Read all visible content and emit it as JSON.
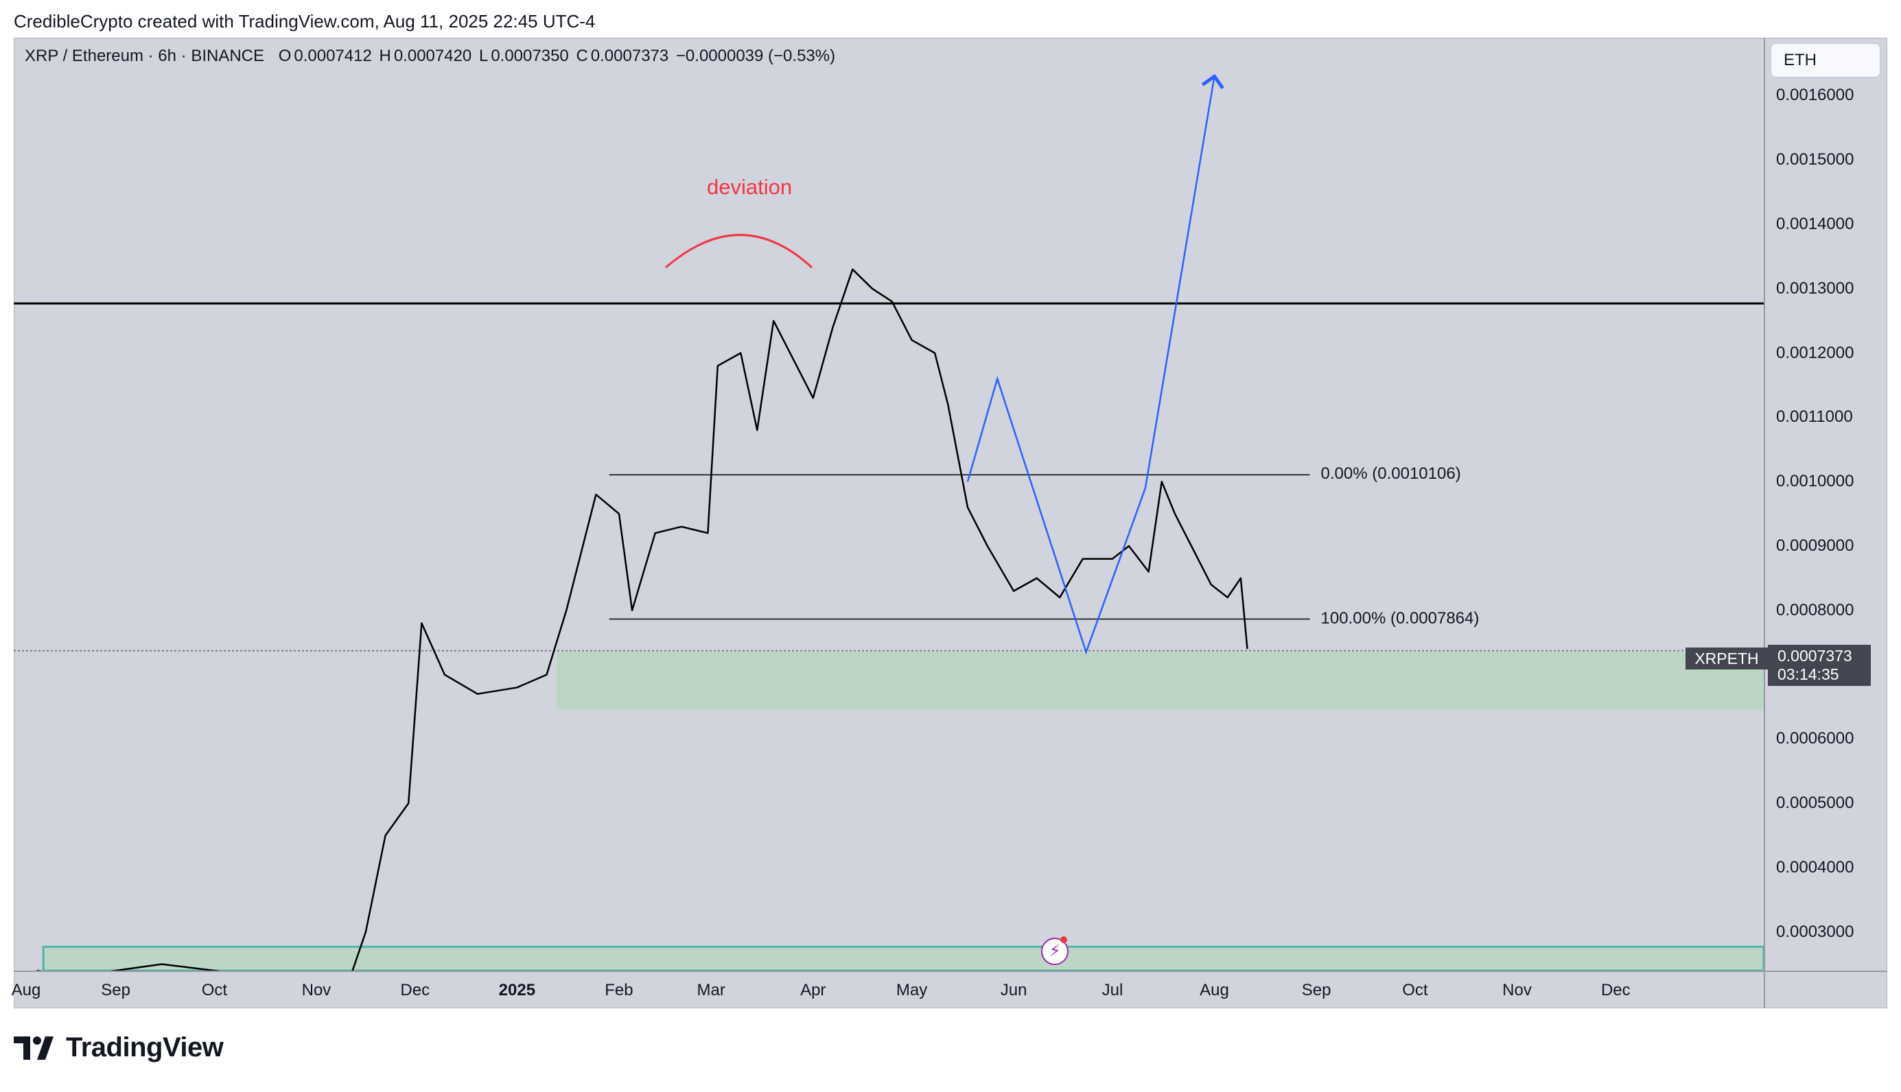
{
  "header": {
    "attribution": "CredibleCrypto created with TradingView.com, Aug 11, 2025 22:45 UTC-4"
  },
  "legend": {
    "symbol": "XRP / Ethereum · 6h · BINANCE",
    "open_label": "O",
    "open": "0.0007412",
    "high_label": "H",
    "high": "0.0007420",
    "low_label": "L",
    "low": "0.0007350",
    "close_label": "C",
    "close": "0.0007373",
    "change": "−0.0000039 (−0.53%)"
  },
  "currency_button": "ETH",
  "price_tag": {
    "symbol": "XRPETH",
    "price": "0.0007373",
    "countdown": "03:14:35"
  },
  "annotations": {
    "deviation": "deviation",
    "fib_0": "0.00% (0.0010106)",
    "fib_100": "100.00% (0.0007864)"
  },
  "branding": {
    "name": "TradingView"
  },
  "colors": {
    "background": "#d1d4dc",
    "candle": "#000000",
    "projection": "#2962ff",
    "deviation_arc": "#f23645",
    "zone_fill": "#a5d6a7",
    "zone_border": "#4db6ac"
  },
  "chart_data": {
    "type": "line",
    "symbol": "XRPETH",
    "interval": "6h",
    "exchange": "BINANCE",
    "y_axis_ticks": [
      "0.0016000",
      "0.0015000",
      "0.0014000",
      "0.0013000",
      "0.0012000",
      "0.0011000",
      "0.0010000",
      "0.0009000",
      "0.0008000",
      "0.0006000",
      "0.0005000",
      "0.0004000",
      "0.0003000"
    ],
    "ylim": [
      0.00024,
      0.00169
    ],
    "x_axis_ticks": [
      "Aug",
      "Sep",
      "Oct",
      "Nov",
      "Dec",
      "2025",
      "Feb",
      "Mar",
      "Apr",
      "May",
      "Jun",
      "Jul",
      "Aug",
      "Sep",
      "Oct",
      "Nov",
      "Dec"
    ],
    "x_tick_dates": [
      "2024-08-01",
      "2024-09-01",
      "2024-10-01",
      "2024-11-01",
      "2024-12-01",
      "2025-01-01",
      "2025-02-01",
      "2025-03-01",
      "2025-04-01",
      "2025-05-01",
      "2025-06-01",
      "2025-07-01",
      "2025-08-01",
      "2025-09-01",
      "2025-10-01",
      "2025-11-01",
      "2025-12-01"
    ],
    "xlim": [
      "2024-08-01",
      "2026-01-15"
    ],
    "series": [
      {
        "x": [
          "2024-08-08",
          "2024-08-20",
          "2024-09-01",
          "2024-09-15",
          "2024-10-01",
          "2024-10-15",
          "2024-11-01",
          "2024-11-10",
          "2024-11-16",
          "2024-11-22",
          "2024-11-29",
          "2024-12-03",
          "2024-12-10",
          "2024-12-20",
          "2025-01-01",
          "2025-01-10",
          "2025-01-16",
          "2025-01-25",
          "2025-02-01",
          "2025-02-05",
          "2025-02-12",
          "2025-02-20",
          "2025-02-28",
          "2025-03-03",
          "2025-03-10",
          "2025-03-15",
          "2025-03-20",
          "2025-03-28",
          "2025-04-01",
          "2025-04-07",
          "2025-04-13",
          "2025-04-19",
          "2025-04-25",
          "2025-05-01",
          "2025-05-08",
          "2025-05-12",
          "2025-05-18",
          "2025-05-24",
          "2025-06-01",
          "2025-06-08",
          "2025-06-15",
          "2025-06-22",
          "2025-07-01",
          "2025-07-06",
          "2025-07-12",
          "2025-07-16",
          "2025-07-20",
          "2025-07-25",
          "2025-07-31",
          "2025-08-05",
          "2025-08-09",
          "2025-08-11"
        ],
        "y": [
          0.00024,
          0.00023,
          0.00024,
          0.00025,
          0.00024,
          0.00023,
          0.00022,
          0.00021,
          0.0003,
          0.00045,
          0.0005,
          0.00078,
          0.0007,
          0.00067,
          0.00068,
          0.0007,
          0.0008,
          0.00098,
          0.00095,
          0.0008,
          0.00092,
          0.00093,
          0.00092,
          0.00118,
          0.0012,
          0.00108,
          0.00125,
          0.00117,
          0.00113,
          0.00124,
          0.00133,
          0.0013,
          0.00128,
          0.00122,
          0.0012,
          0.00112,
          0.00096,
          0.0009,
          0.00083,
          0.00085,
          0.00082,
          0.00088,
          0.00088,
          0.0009,
          0.00086,
          0.001,
          0.00095,
          0.0009,
          0.00084,
          0.00082,
          0.00085,
          0.00074
        ]
      }
    ],
    "horizontal_lines": [
      0.001277
    ],
    "fib_levels": [
      {
        "label": "0.00% (0.0010106)",
        "value": 0.0010106,
        "start": "2025-01-29",
        "end": "2025-08-30"
      },
      {
        "label": "100.00% (0.0007864)",
        "value": 0.0007864,
        "start": "2025-01-29",
        "end": "2025-08-30"
      }
    ],
    "zones": [
      {
        "y0": 0.000645,
        "y1": 0.000735,
        "start": "2025-01-13",
        "end": "2026-01-15"
      },
      {
        "y0": 0.00024,
        "y1": 0.000277,
        "start": "2024-08-10",
        "end": "2026-01-15"
      }
    ],
    "projection_path": {
      "x": [
        "2025-05-18",
        "2025-05-27",
        "2025-06-23",
        "2025-07-11",
        "2025-08-01"
      ],
      "y": [
        0.001,
        0.00116,
        0.000735,
        0.00099,
        0.00163
      ]
    },
    "current_price": 0.0007373
  }
}
